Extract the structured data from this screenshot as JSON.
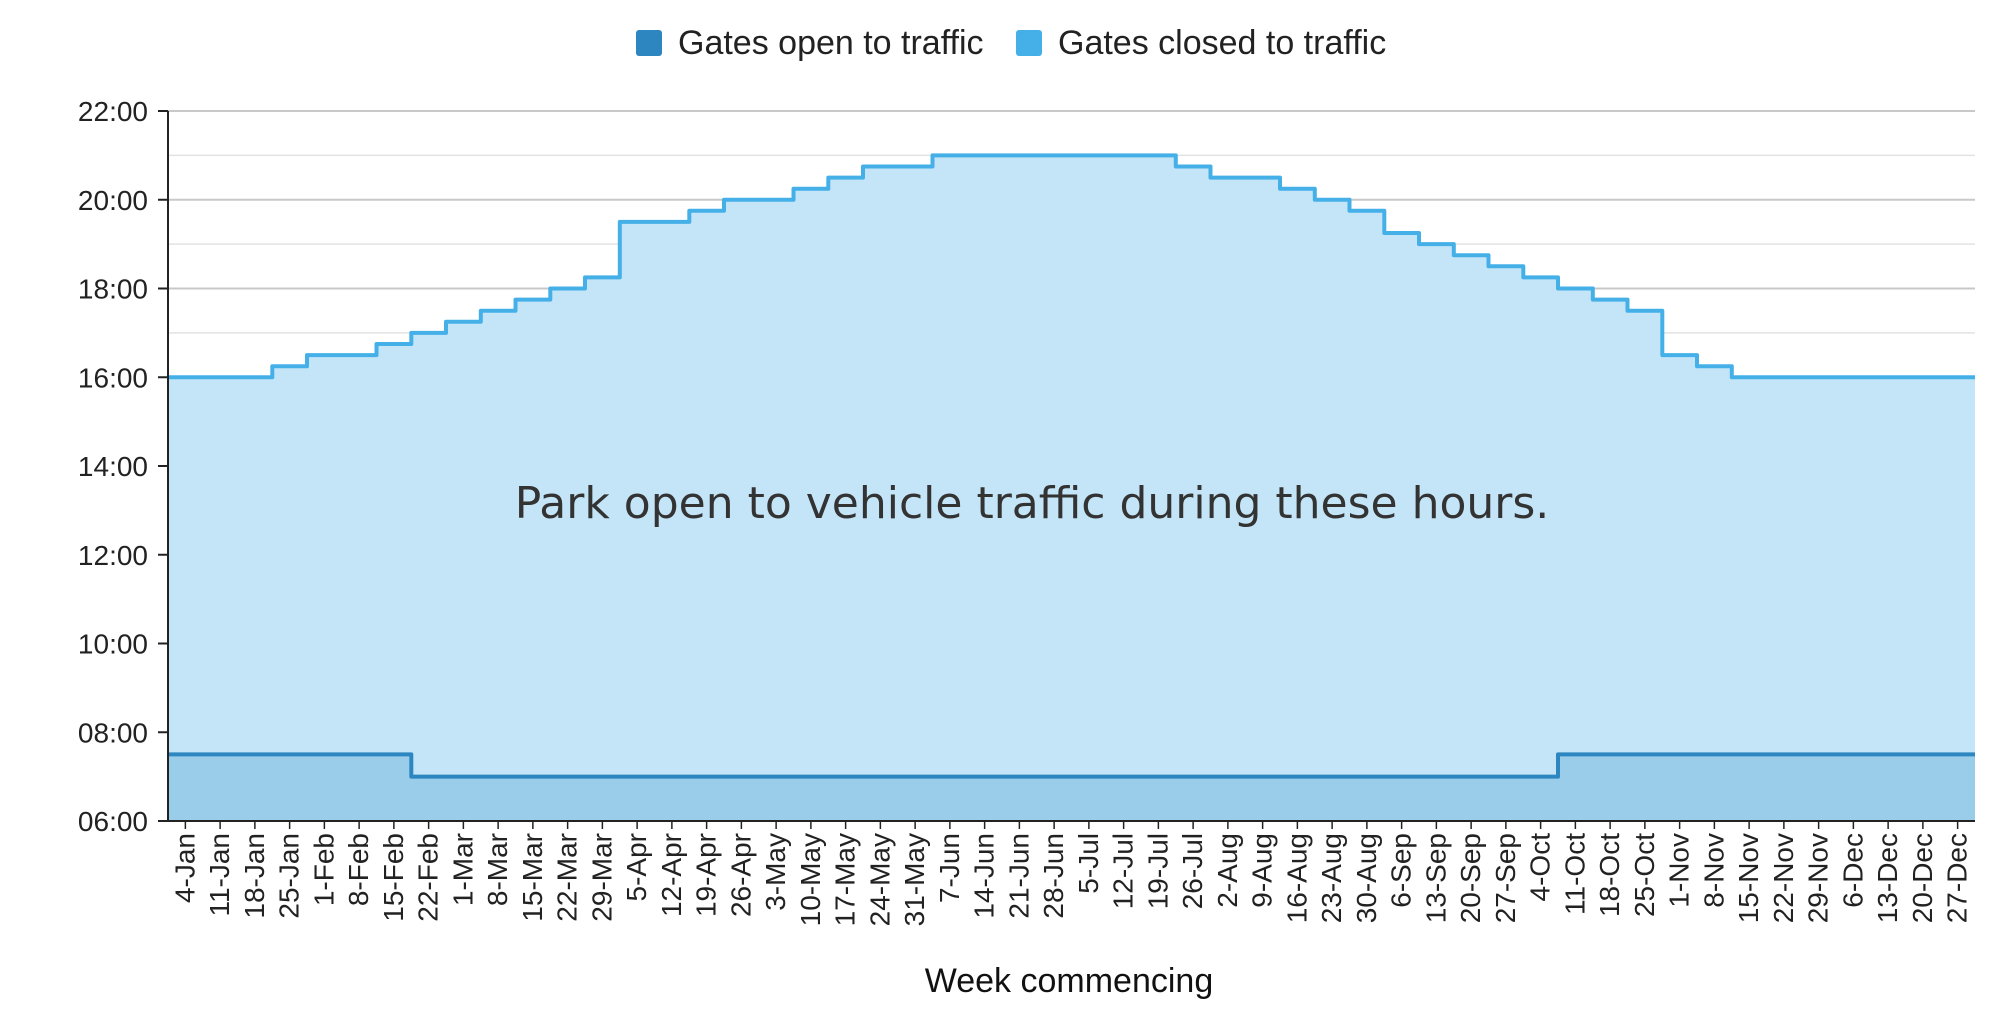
{
  "chart_data": {
    "type": "area",
    "title": "",
    "xlabel": "Week commencing",
    "ylabel": "",
    "y_ticks": [
      "06:00",
      "08:00",
      "10:00",
      "12:00",
      "14:00",
      "16:00",
      "18:00",
      "20:00",
      "22:00"
    ],
    "ylim": [
      "06:00",
      "22:00"
    ],
    "grid": true,
    "legend_position": "top-center",
    "annotation": "Park open to vehicle traffic during these hours.",
    "categories": [
      "4-Jan",
      "11-Jan",
      "18-Jan",
      "25-Jan",
      "1-Feb",
      "8-Feb",
      "15-Feb",
      "22-Feb",
      "1-Mar",
      "8-Mar",
      "15-Mar",
      "22-Mar",
      "29-Mar",
      "5-Apr",
      "12-Apr",
      "19-Apr",
      "26-Apr",
      "3-May",
      "10-May",
      "17-May",
      "24-May",
      "31-May",
      "7-Jun",
      "14-Jun",
      "21-Jun",
      "28-Jun",
      "5-Jul",
      "12-Jul",
      "19-Jul",
      "26-Jul",
      "2-Aug",
      "9-Aug",
      "16-Aug",
      "23-Aug",
      "30-Aug",
      "6-Sep",
      "13-Sep",
      "20-Sep",
      "27-Sep",
      "4-Oct",
      "11-Oct",
      "18-Oct",
      "25-Oct",
      "1-Nov",
      "8-Nov",
      "15-Nov",
      "22-Nov",
      "29-Nov",
      "6-Dec",
      "13-Dec",
      "20-Dec",
      "27-Dec"
    ],
    "series": [
      {
        "name": "Gates open to traffic",
        "color": "#2E86C1",
        "fill": "#9ACDEA",
        "values": [
          "07:30",
          "07:30",
          "07:30",
          "07:30",
          "07:30",
          "07:30",
          "07:30",
          "07:00",
          "07:00",
          "07:00",
          "07:00",
          "07:00",
          "07:00",
          "07:00",
          "07:00",
          "07:00",
          "07:00",
          "07:00",
          "07:00",
          "07:00",
          "07:00",
          "07:00",
          "07:00",
          "07:00",
          "07:00",
          "07:00",
          "07:00",
          "07:00",
          "07:00",
          "07:00",
          "07:00",
          "07:00",
          "07:00",
          "07:00",
          "07:00",
          "07:00",
          "07:00",
          "07:00",
          "07:00",
          "07:00",
          "07:30",
          "07:30",
          "07:30",
          "07:30",
          "07:30",
          "07:30",
          "07:30",
          "07:30",
          "07:30",
          "07:30",
          "07:30",
          "07:30"
        ]
      },
      {
        "name": "Gates closed to traffic",
        "color": "#45B0E8",
        "fill": "#C4E5F7",
        "values": [
          "16:00",
          "16:00",
          "16:00",
          "16:15",
          "16:30",
          "16:30",
          "16:45",
          "17:00",
          "17:15",
          "17:30",
          "17:45",
          "18:00",
          "18:15",
          "19:30",
          "19:30",
          "19:45",
          "20:00",
          "20:00",
          "20:15",
          "20:30",
          "20:45",
          "20:45",
          "21:00",
          "21:00",
          "21:00",
          "21:00",
          "21:00",
          "21:00",
          "21:00",
          "20:45",
          "20:30",
          "20:30",
          "20:15",
          "20:00",
          "19:45",
          "19:15",
          "19:00",
          "18:45",
          "18:30",
          "18:15",
          "18:00",
          "17:45",
          "17:30",
          "16:30",
          "16:15",
          "16:00",
          "16:00",
          "16:00",
          "16:00",
          "16:00",
          "16:00",
          "16:00"
        ]
      }
    ]
  }
}
